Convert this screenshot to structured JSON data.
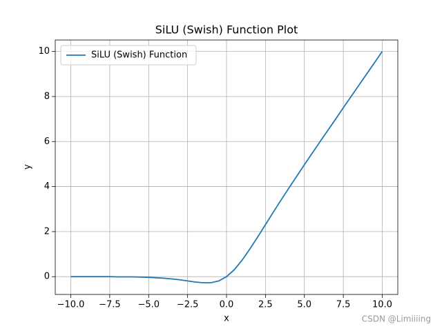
{
  "chart_data": {
    "type": "line",
    "title": "SiLU (Swish) Function Plot",
    "xlabel": "x",
    "ylabel": "y",
    "x": [
      -10,
      -9.5,
      -9,
      -8.5,
      -8,
      -7.5,
      -7,
      -6.5,
      -6,
      -5.5,
      -5,
      -4.5,
      -4,
      -3.5,
      -3,
      -2.5,
      -2,
      -1.5,
      -1,
      -0.5,
      0,
      0.5,
      1,
      1.5,
      2,
      2.5,
      3,
      3.5,
      4,
      4.5,
      5,
      5.5,
      6,
      6.5,
      7,
      7.5,
      8,
      8.5,
      9,
      9.5,
      10
    ],
    "series": [
      {
        "name": "SiLU (Swish) Function",
        "color": "#1f77b4",
        "values": [
          0.0,
          0.0,
          0.0,
          0.0,
          0.0,
          0.0,
          -0.01,
          -0.01,
          -0.01,
          -0.02,
          -0.03,
          -0.05,
          -0.07,
          -0.1,
          -0.14,
          -0.19,
          -0.24,
          -0.27,
          -0.27,
          -0.19,
          0,
          0.31,
          0.73,
          1.23,
          1.76,
          2.31,
          2.86,
          3.4,
          3.93,
          4.45,
          4.97,
          5.48,
          5.99,
          6.49,
          6.99,
          7.5,
          8.0,
          8.5,
          9.0,
          9.5,
          10.0
        ]
      }
    ],
    "xlim": [
      -11,
      11
    ],
    "ylim": [
      -0.79,
      10.51
    ],
    "xticks": [
      {
        "value": -10,
        "label": "−10.0"
      },
      {
        "value": -7.5,
        "label": "−7.5"
      },
      {
        "value": -5,
        "label": "−5.0"
      },
      {
        "value": -2.5,
        "label": "−2.5"
      },
      {
        "value": 0,
        "label": "0.0"
      },
      {
        "value": 2.5,
        "label": "2.5"
      },
      {
        "value": 5,
        "label": "5.0"
      },
      {
        "value": 7.5,
        "label": "7.5"
      },
      {
        "value": 10,
        "label": "10.0"
      }
    ],
    "yticks": [
      0,
      2,
      4,
      6,
      8,
      10
    ],
    "grid": true,
    "legend": "upper left",
    "watermark": "CSDN @Limiiiing"
  }
}
